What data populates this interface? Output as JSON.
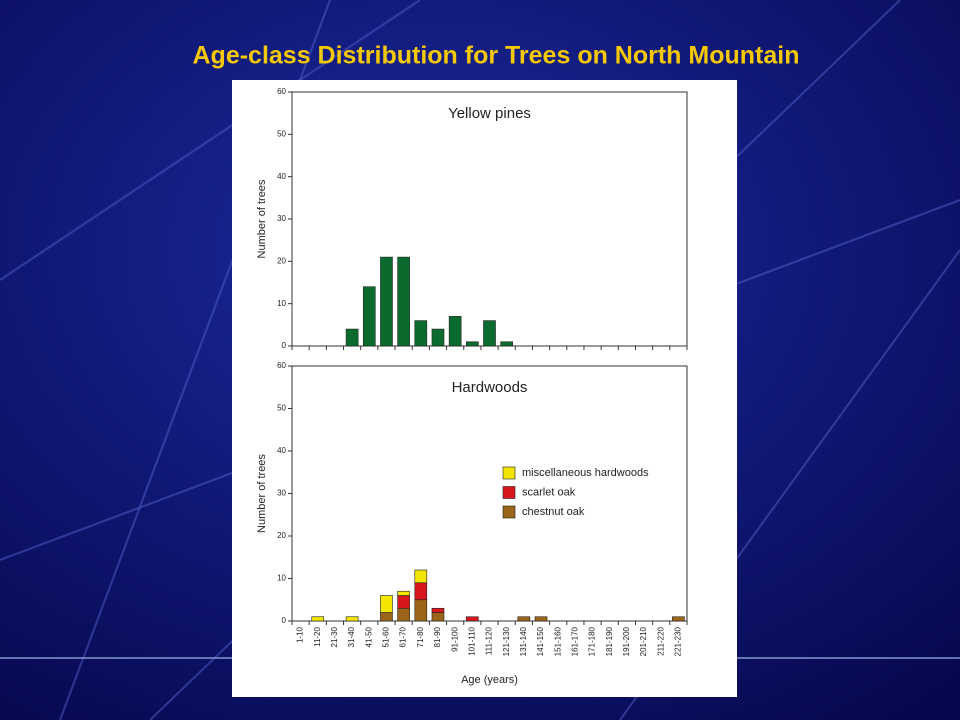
{
  "title": "Age-class Distribution for Trees on North Mountain",
  "chart_data": [
    {
      "type": "bar",
      "title": "Yellow pines",
      "ylabel": "Number of trees",
      "categories": [
        null,
        null,
        null,
        null,
        null,
        null,
        null,
        null,
        null,
        null,
        null,
        null,
        null,
        null,
        null,
        null,
        null,
        null,
        null,
        null,
        null,
        null,
        null
      ],
      "values": [
        0,
        0,
        0,
        4,
        14,
        21,
        21,
        6,
        4,
        7,
        1,
        6,
        1,
        0,
        0,
        0,
        0,
        0,
        0,
        0,
        0,
        0,
        0
      ],
      "color": "#0b6b2e",
      "ylim": [
        0,
        60
      ],
      "yticks": [
        0,
        10,
        20,
        30,
        40,
        50,
        60
      ]
    },
    {
      "type": "stacked_bar",
      "title": "Hardwoods",
      "ylabel": "Number of trees",
      "xlabel": "Age (years)",
      "categories": [
        "1-10",
        "11-20",
        "21-30",
        "31-40",
        "41-50",
        "51-60",
        "61-70",
        "71-80",
        "81-90",
        "91-100",
        "101-110",
        "111-120",
        "121-130",
        "131-140",
        "141-150",
        "151-160",
        "161-170",
        "171-180",
        "181-190",
        "191-200",
        "201-210",
        "211-220",
        "221-230"
      ],
      "series": [
        {
          "name": "miscellaneous hardwoods",
          "color": "#f2e600",
          "values": [
            0,
            1,
            0,
            1,
            0,
            4,
            1,
            3,
            0,
            0,
            0,
            0,
            0,
            0,
            0,
            0,
            0,
            0,
            0,
            0,
            0,
            0,
            0
          ]
        },
        {
          "name": "scarlet oak",
          "color": "#d8161d",
          "values": [
            0,
            0,
            0,
            0,
            0,
            0,
            3,
            4,
            1,
            0,
            1,
            0,
            0,
            0,
            0,
            0,
            0,
            0,
            0,
            0,
            0,
            0,
            0
          ]
        },
        {
          "name": "chestnut oak",
          "color": "#9c6418",
          "values": [
            0,
            0,
            0,
            0,
            0,
            2,
            3,
            5,
            2,
            0,
            0,
            0,
            0,
            1,
            1,
            0,
            0,
            0,
            0,
            0,
            0,
            0,
            1
          ]
        }
      ],
      "ylim": [
        0,
        60
      ],
      "yticks": [
        0,
        10,
        20,
        30,
        40,
        50,
        60
      ]
    }
  ]
}
